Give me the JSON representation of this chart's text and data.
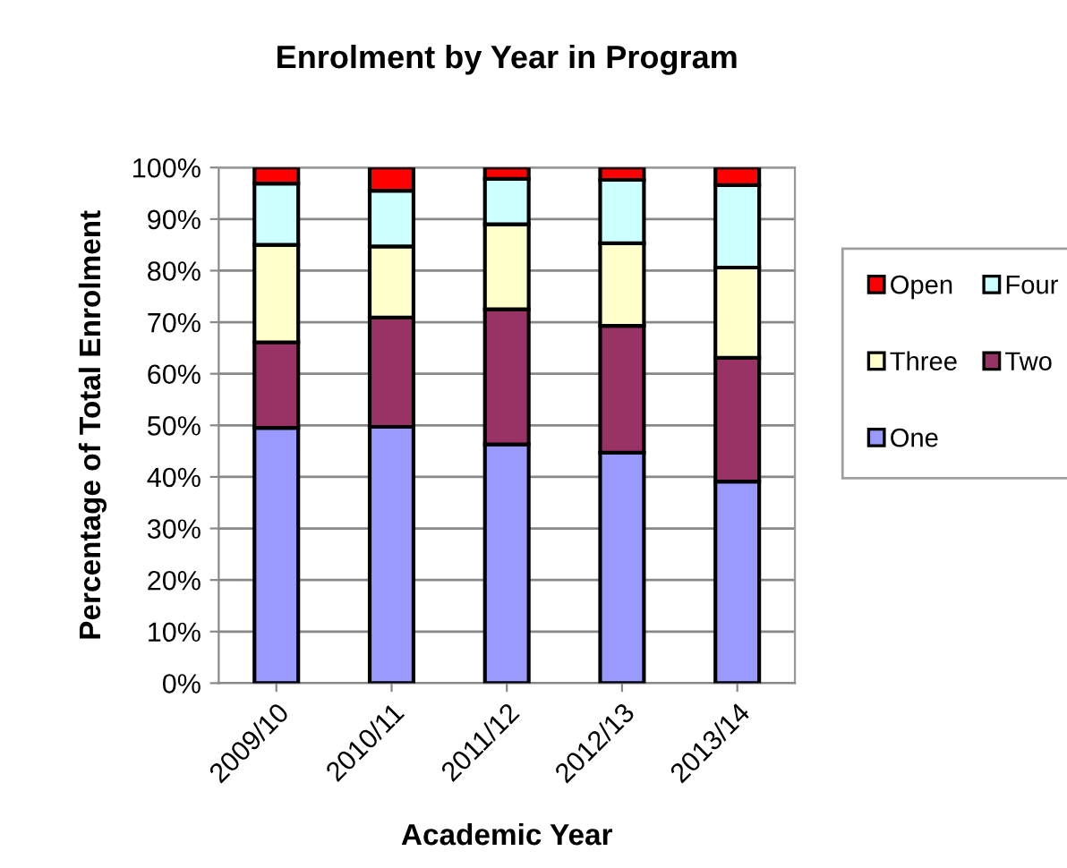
{
  "chart_data": {
    "type": "bar",
    "stacked": true,
    "title": "Enrolment by Year in Program",
    "xlabel": "Academic Year",
    "ylabel": "Percentage of Total Enrolment",
    "categories": [
      "2009/10",
      "2010/11",
      "2011/12",
      "2012/13",
      "2013/14"
    ],
    "series": [
      {
        "name": "One",
        "color": "#9999ff",
        "values": [
          49.5,
          49.7,
          46.3,
          44.7,
          39.1
        ]
      },
      {
        "name": "Two",
        "color": "#993366",
        "values": [
          16.6,
          21.2,
          26.2,
          24.6,
          24.0
        ]
      },
      {
        "name": "Three",
        "color": "#ffffcc",
        "values": [
          18.9,
          13.8,
          16.5,
          16.0,
          17.5
        ]
      },
      {
        "name": "Four",
        "color": "#ccffff",
        "values": [
          11.9,
          10.8,
          8.8,
          12.3,
          16.0
        ]
      },
      {
        "name": "Open",
        "color": "#ff0000",
        "values": [
          3.1,
          4.5,
          2.2,
          2.4,
          3.4
        ]
      }
    ],
    "ylim": [
      0,
      100
    ],
    "yticks": [
      {
        "value": 0,
        "label": "0%"
      },
      {
        "value": 10,
        "label": "10%"
      },
      {
        "value": 20,
        "label": "20%"
      },
      {
        "value": 30,
        "label": "30%"
      },
      {
        "value": 40,
        "label": "40%"
      },
      {
        "value": 50,
        "label": "50%"
      },
      {
        "value": 60,
        "label": "60%"
      },
      {
        "value": 70,
        "label": "70%"
      },
      {
        "value": 80,
        "label": "80%"
      },
      {
        "value": 90,
        "label": "90%"
      },
      {
        "value": 100,
        "label": "100%"
      }
    ],
    "grid": "y",
    "legend": "right"
  }
}
